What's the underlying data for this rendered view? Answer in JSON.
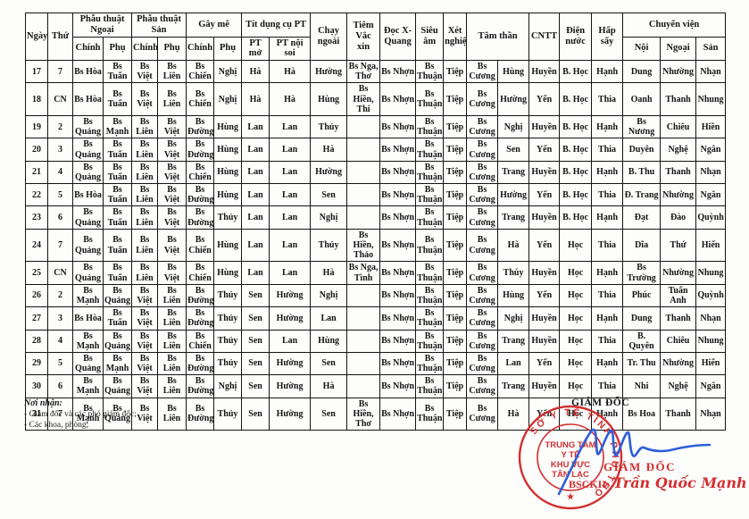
{
  "table": {
    "header": {
      "ngay": "Ngày",
      "thu": "Thứ",
      "group_pt_ngoai": "Phẫu thuật Ngoại",
      "group_pt_san": "Phẫu thuật Sản",
      "group_gay_me": "Gây mê",
      "group_dung_cu": "Tít dụng cụ PT",
      "sub_chinh": "Chính",
      "sub_phu": "Phụ",
      "sub_pt_mo": "PT mở",
      "sub_pt_noi_soi": "PT nội soi",
      "chay_ngoai": "Chạy ngoài",
      "tiem_vac_xin": "Tiêm Vắc xin",
      "doc_x_quang": "Đọc X-Quang",
      "sieu_am": "Siêu âm",
      "xet_nghiem": "Xét nghiệm",
      "tam_than": "Tâm thần",
      "cntt": "CNTT",
      "dien_nuoc": "Điện nước",
      "hap_say": "Hấp sấy",
      "group_chuyen_vien": "Chuyển viện",
      "sub_noi": "Nội",
      "sub_ngoai": "Ngoại",
      "sub_san": "Sản"
    },
    "rows": [
      [
        "17",
        "7",
        "Bs Hòa",
        "Bs Tuấn",
        "Bs Việt",
        "Bs Liên",
        "Bs Chiến",
        "Nghị",
        "Hà",
        "Hà",
        "Hường",
        "Bs Nga, Thơ",
        "Bs Nhợn",
        "Bs Thuận",
        "Tiệp",
        "Bs Cương",
        "Hùng",
        "Huyền",
        "B. Học",
        "Hạnh",
        "Dung",
        "Nhường",
        "Nhạn"
      ],
      [
        "18",
        "CN",
        "Bs Hòa",
        "Bs Tuấn",
        "Bs Việt",
        "Bs Liên",
        "Bs Chiến",
        "Nghị",
        "Hà",
        "Hà",
        "Hùng",
        "Bs Hiền, Thi",
        "Bs Nhợn",
        "Bs Thuận",
        "Tiệp",
        "Bs Cương",
        "Hường",
        "Yến",
        "B. Học",
        "Thia",
        "Oanh",
        "Thanh",
        "Nhung"
      ],
      [
        "19",
        "2",
        "Bs Quảng",
        "Bs Mạnh",
        "Bs Liên",
        "Bs Việt",
        "Bs Đường",
        "Hùng",
        "Lan",
        "Lan",
        "Thủy",
        "",
        "Bs Nhợn",
        "Bs Thuận",
        "Tiệp",
        "Bs Cương",
        "Nghị",
        "Huyền",
        "B. Học",
        "Hạnh",
        "Bs Nương",
        "Chiêu",
        "Hiền"
      ],
      [
        "20",
        "3",
        "Bs Quảng",
        "Bs Tuấn",
        "Bs Liên",
        "Bs Việt",
        "Bs Đường",
        "Hùng",
        "Lan",
        "Lan",
        "Hà",
        "",
        "Bs Nhợn",
        "Bs Thuận",
        "Tiệp",
        "Bs Cương",
        "Sen",
        "Yến",
        "B. Học",
        "Thia",
        "Duyên",
        "Nghệ",
        "Ngân"
      ],
      [
        "21",
        "4",
        "Bs Quảng",
        "Bs Tuấn",
        "Bs Liên",
        "Bs Việt",
        "Bs Chiến",
        "Hùng",
        "Lan",
        "Lan",
        "Hường",
        "",
        "Bs Nhợn",
        "Bs Thuận",
        "Tiệp",
        "Bs Cương",
        "Trang",
        "Huyền",
        "B. Học",
        "Hạnh",
        "B. Thu",
        "Thanh",
        "Nhạn"
      ],
      [
        "22",
        "5",
        "Bs Hòa",
        "Bs Tuấn",
        "Bs Liên",
        "Bs Việt",
        "Bs Đường",
        "Hùng",
        "Lan",
        "Lan",
        "Sen",
        "",
        "Bs Nhợn",
        "Bs Thuận",
        "Tiệp",
        "Bs Cương",
        "Hường",
        "Yến",
        "B. Học",
        "Thia",
        "Đ. Trang",
        "Nhường",
        "Ngân"
      ],
      [
        "23",
        "6",
        "Bs Quảng",
        "Bs Tuấn",
        "Bs Liên",
        "Bs Việt",
        "Bs Đường",
        "Thủy",
        "Lan",
        "Lan",
        "Nghị",
        "",
        "Bs Nhợn",
        "Bs Thuận",
        "Tiệp",
        "Bs Cương",
        "Trang",
        "Huyền",
        "B. Học",
        "Hạnh",
        "Đạt",
        "Đào",
        "Quỳnh"
      ],
      [
        "24",
        "7",
        "Bs Quảng",
        "Bs Tuấn",
        "Bs Liên",
        "Bs Việt",
        "Bs Chiến",
        "Hùng",
        "Lan",
        "Lan",
        "Thủy",
        "Bs Hiền, Thảo",
        "Bs Nhợn",
        "Bs Thuận",
        "Tiệp",
        "Bs Cương",
        "Hà",
        "Yến",
        "Học",
        "Thia",
        "Dĩa",
        "Thứ",
        "Hiển"
      ],
      [
        "25",
        "CN",
        "Bs Quảng",
        "Bs Tuấn",
        "Bs Liên",
        "Bs Việt",
        "Bs Chiến",
        "Hùng",
        "Lan",
        "Lan",
        "Hà",
        "Bs Nga, Tình",
        "Bs Nhợn",
        "Bs Thuận",
        "Tiệp",
        "Bs Cương",
        "Thúy",
        "Huyền",
        "Học",
        "Hạnh",
        "Bs Trường",
        "Nhường",
        "Nhung"
      ],
      [
        "26",
        "2",
        "Bs Mạnh",
        "Bs Quảng",
        "Bs Việt",
        "Bs Liên",
        "Bs Đường",
        "Thủy",
        "Sen",
        "Hường",
        "Nghị",
        "",
        "Bs Nhợn",
        "Bs Thuận",
        "Tiệp",
        "Bs Cương",
        "Hùng",
        "Yến",
        "Học",
        "Thia",
        "Phúc",
        "Tuấn Anh",
        "Quỳnh"
      ],
      [
        "27",
        "3",
        "Bs Hòa",
        "Bs Tuấn",
        "Bs Việt",
        "Bs Liên",
        "Bs Đường",
        "Thủy",
        "Sen",
        "Hường",
        "Lan",
        "",
        "Bs Nhợn",
        "Bs Thuận",
        "Tiệp",
        "Bs Cương",
        "Nghị",
        "Huyền",
        "Học",
        "Hạnh",
        "Dung",
        "Thanh",
        "Nhạn"
      ],
      [
        "28",
        "4",
        "Bs Mạnh",
        "Bs Quảng",
        "Bs Việt",
        "Bs Liên",
        "Bs Chiến",
        "Thủy",
        "Sen",
        "Lan",
        "Hùng",
        "",
        "Bs Nhợn",
        "Bs Thuận",
        "Tiệp",
        "Bs Cương",
        "Trang",
        "Huyền",
        "Học",
        "Thia",
        "B. Quyên",
        "Chiêu",
        "Nhung"
      ],
      [
        "29",
        "5",
        "Bs Quảng",
        "Bs Mạnh",
        "Bs Việt",
        "Bs Liên",
        "Bs Đường",
        "Thủy",
        "Sen",
        "Hường",
        "Sen",
        "",
        "Bs Nhợn",
        "Bs Thuận",
        "Tiệp",
        "Bs Cương",
        "Lan",
        "Yến",
        "Học",
        "Hạnh",
        "Tr. Thu",
        "Nhường",
        "Hiển"
      ],
      [
        "30",
        "6",
        "Bs Mạnh",
        "Bs Quảng",
        "Bs Việt",
        "Bs Liên",
        "Bs Đường",
        "Nghị",
        "Sen",
        "Hường",
        "Hà",
        "",
        "Bs Nhợn",
        "Bs Thuận",
        "Tiệp",
        "Bs Cương",
        "Trang",
        "Huyền",
        "Học",
        "Thia",
        "Nhi",
        "Nghệ",
        "Ngân"
      ],
      [
        "31",
        "7",
        "Bs Mạnh",
        "Bs Quảng",
        "Bs Việt",
        "Bs Liên",
        "Bs Đường",
        "Thủy",
        "Sen",
        "Hường",
        "Sen",
        "Bs Hiền, Thơ",
        "Bs Nhợn",
        "Bs Thuận",
        "Tiệp",
        "Bs Cương",
        "Hà",
        "Yến",
        "Học",
        "Hạnh",
        "Bs Hoa",
        "Thanh",
        "Nhạn"
      ]
    ]
  },
  "footer_notes": {
    "label": "Nơi nhận:",
    "line1": "- Giám đốc và các phó giám đốc;",
    "line2": "- Các khoa, phòng;"
  },
  "signature": {
    "title_black": "GIÁM ĐỐC",
    "title_red": "GIÁM ĐỐC",
    "signer_prefix": "BSCKII:",
    "signer_name": "Trần Quốc Mạnh",
    "stamp": {
      "ring_text": "SỞ Y TẾ TỈNH PHÚ THỌ",
      "star": "★",
      "line1": "TRUNG TÂM",
      "line2": "Y TẾ",
      "line3": "KHU VỰC",
      "line4": "TÂN LẠC"
    },
    "colors": {
      "stamp_red": "#d12f2f",
      "pen_blue": "#2b5fd9"
    }
  }
}
